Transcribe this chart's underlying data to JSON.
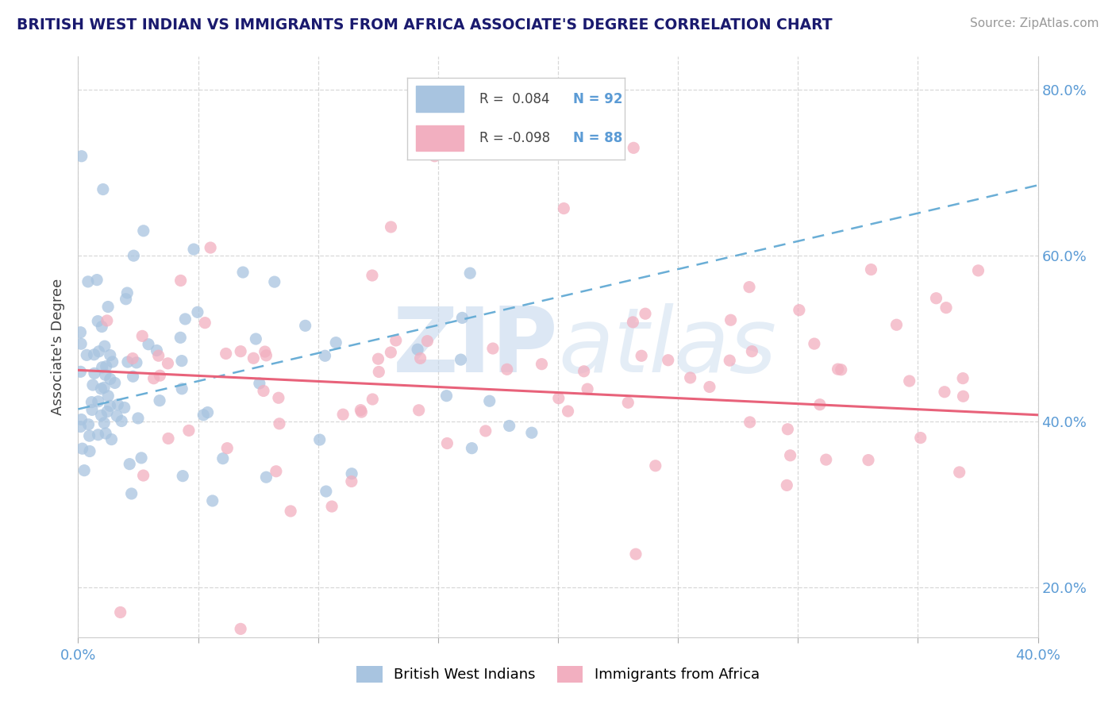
{
  "title": "BRITISH WEST INDIAN VS IMMIGRANTS FROM AFRICA ASSOCIATE'S DEGREE CORRELATION CHART",
  "source_text": "Source: ZipAtlas.com",
  "ylabel": "Associate's Degree",
  "xlim": [
    0.0,
    0.4
  ],
  "ylim": [
    0.14,
    0.84
  ],
  "color_blue": "#a8c4e0",
  "color_pink": "#f2afc0",
  "line_blue": "#6aaed6",
  "line_pink": "#e8627a",
  "title_color": "#1a1a6e",
  "axis_label_color": "#5b9bd5",
  "source_color": "#999999",
  "watermark_color": "#c5d8ed",
  "grid_color": "#c8c8c8",
  "R_blue": 0.084,
  "N_blue": 92,
  "R_pink": -0.098,
  "N_pink": 88,
  "blue_seed": 7,
  "pink_seed": 42
}
